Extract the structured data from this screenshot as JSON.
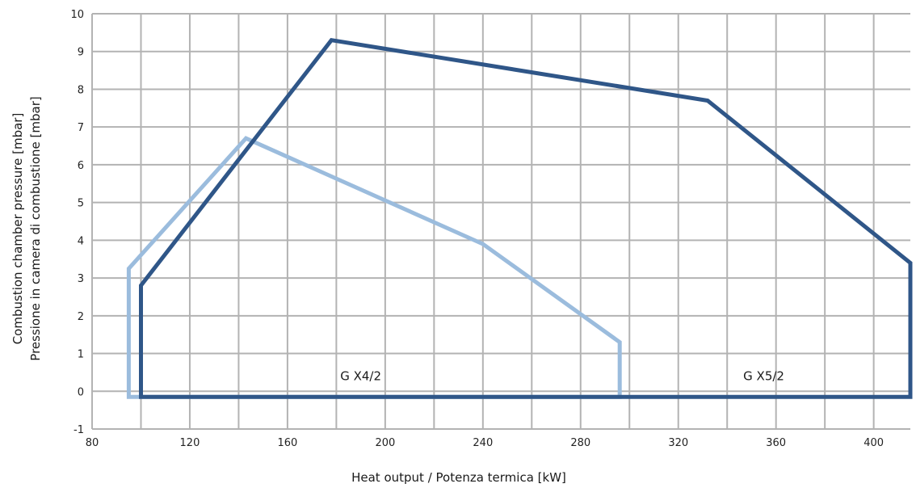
{
  "chart_data": {
    "type": "line",
    "title": "",
    "xlabel": "Heat output / Potenza termica [kW]",
    "ylabel": [
      "Combustion chamber pressure [mbar]",
      "Pressione in camera di combustione [mbar]"
    ],
    "xlim": [
      80,
      415
    ],
    "ylim": [
      -1,
      10
    ],
    "x_ticks": [
      80,
      120,
      160,
      200,
      240,
      280,
      320,
      360,
      400
    ],
    "y_ticks": [
      -1,
      0,
      1,
      2,
      3,
      4,
      5,
      6,
      7,
      8,
      9,
      10
    ],
    "x_gridlines": [
      80,
      100,
      120,
      140,
      160,
      180,
      200,
      220,
      240,
      260,
      280,
      300,
      320,
      340,
      360,
      380,
      400
    ],
    "grid": true,
    "series": [
      {
        "name": "G X4/2",
        "color": "#9bbcdd",
        "label_at": [
          190,
          0.3
        ],
        "x": [
          95,
          95,
          143,
          240,
          296,
          296,
          95
        ],
        "y": [
          -0.15,
          3.25,
          6.7,
          3.9,
          1.3,
          -0.15,
          -0.15
        ]
      },
      {
        "name": "G X5/2",
        "color": "#2f5688",
        "label_at": [
          355,
          0.3
        ],
        "x": [
          100,
          100,
          178,
          332,
          415,
          415,
          100
        ],
        "y": [
          -0.15,
          2.8,
          9.3,
          7.7,
          3.4,
          -0.15,
          -0.15
        ]
      }
    ]
  }
}
